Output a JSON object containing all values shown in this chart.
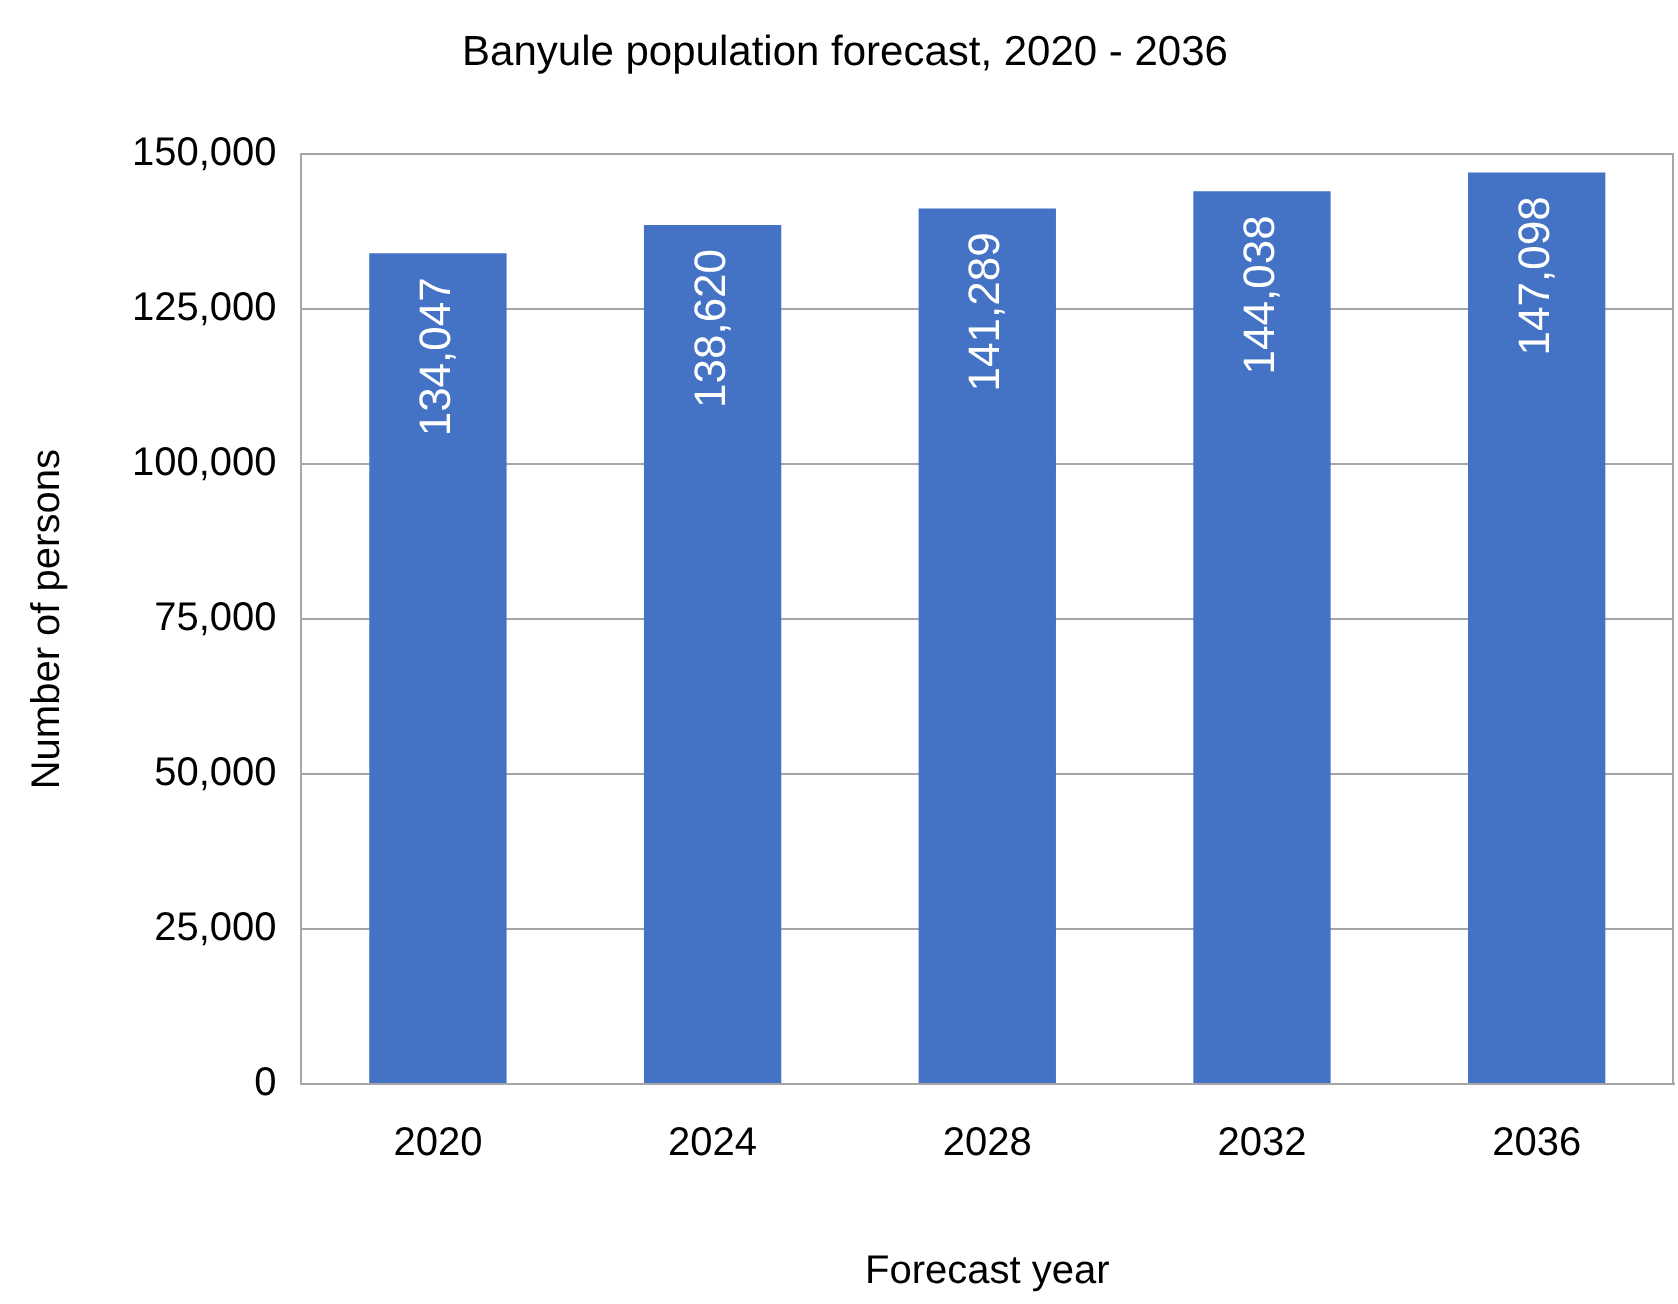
{
  "chart_data": {
    "type": "bar",
    "title": "Banyule population forecast, 2020 - 2036",
    "xlabel": "Forecast year",
    "ylabel": "Number of persons",
    "categories": [
      "2020",
      "2024",
      "2028",
      "2032",
      "2036"
    ],
    "series": [
      {
        "color": "#4472c4",
        "values": [
          134047,
          138620,
          141289,
          144038,
          147098
        ],
        "value_labels": [
          "134,047",
          "138,620",
          "141,289",
          "144,038",
          "147,098"
        ]
      }
    ],
    "ylim": [
      0,
      150000
    ],
    "yticks": [
      0,
      {
        "value": 25000,
        "label": "25,000"
      },
      {
        "value": 50000,
        "label": "50,000"
      },
      {
        "value": 75000,
        "label": "75,000"
      },
      {
        "value": 100000,
        "label": "100,000"
      },
      {
        "value": 125000,
        "label": "125,000"
      },
      {
        "value": 150000,
        "label": "150,000"
      }
    ],
    "grid": "y",
    "legend": false
  }
}
